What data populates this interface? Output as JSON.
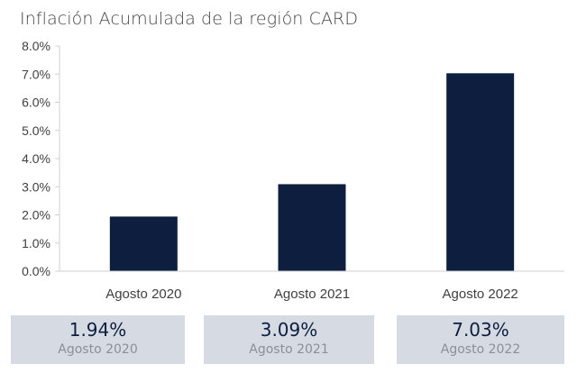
{
  "title": "Inflación Acumulada de la región CARD",
  "colors": {
    "bar": "#0d1e3f",
    "axis": "#d0d0d0",
    "card_bg": "#d6dbe3",
    "card_value": "#0d1e3f",
    "card_label": "#8a8f98"
  },
  "chart_data": {
    "type": "bar",
    "title": "Inflación Acumulada de la región CARD",
    "categories": [
      "Agosto 2020",
      "Agosto 2021",
      "Agosto 2022"
    ],
    "values": [
      1.94,
      3.09,
      7.03
    ],
    "ylim": [
      0,
      8
    ],
    "yticks": [
      0,
      1,
      2,
      3,
      4,
      5,
      6,
      7,
      8
    ],
    "ytick_labels": [
      "0.0%",
      "1.0%",
      "2.0%",
      "3.0%",
      "4.0%",
      "5.0%",
      "6.0%",
      "7.0%",
      "8.0%"
    ],
    "xlabel": "",
    "ylabel": "",
    "grid": false,
    "legend": "none"
  },
  "cards": [
    {
      "value": "1.94%",
      "label": "Agosto 2020"
    },
    {
      "value": "3.09%",
      "label": "Agosto 2021"
    },
    {
      "value": "7.03%",
      "label": "Agosto 2022"
    }
  ]
}
